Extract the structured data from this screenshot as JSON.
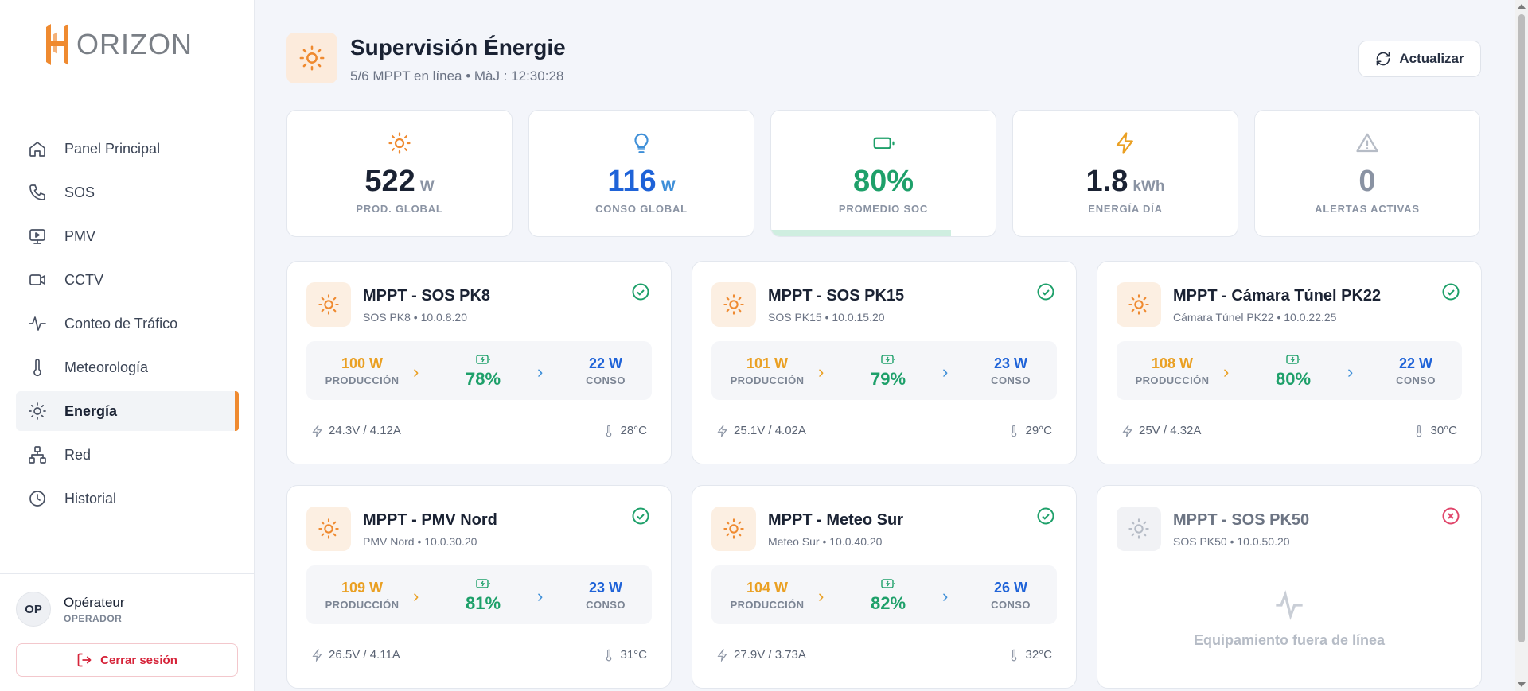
{
  "app": {
    "logo_text": "ORIZON"
  },
  "sidebar": {
    "items": [
      {
        "label": "Panel Principal",
        "icon": "home-icon"
      },
      {
        "label": "SOS",
        "icon": "phone-icon"
      },
      {
        "label": "PMV",
        "icon": "monitor-icon"
      },
      {
        "label": "CCTV",
        "icon": "video-icon"
      },
      {
        "label": "Conteo de Tráfico",
        "icon": "activity-icon"
      },
      {
        "label": "Meteorología",
        "icon": "thermometer-icon"
      },
      {
        "label": "Energía",
        "icon": "sun-icon",
        "active": true
      },
      {
        "label": "Red",
        "icon": "network-icon"
      },
      {
        "label": "Historial",
        "icon": "clock-icon"
      }
    ],
    "user": {
      "initials": "OP",
      "name": "Opérateur",
      "role": "OPERADOR"
    },
    "logout_label": "Cerrar sesión"
  },
  "header": {
    "title": "Supervisión Énergie",
    "subtitle": "5/6 MPPT en línea • MàJ : 12:30:28",
    "refresh_label": "Actualizar"
  },
  "kpis": [
    {
      "value": "522",
      "unit": "W",
      "label": "PROD. GLOBAL",
      "color": "#1a2233",
      "icon_color": "#ef8a30"
    },
    {
      "value": "116",
      "unit": "W",
      "label": "CONSO GLOBAL",
      "color": "#1f63d8",
      "icon_color": "#3e8fd8"
    },
    {
      "value": "80%",
      "unit": "",
      "label": "PROMEDIO SOC",
      "color": "#1ea06a",
      "icon_color": "#1ea06a",
      "fill_fraction": 0.8
    },
    {
      "value": "1.8",
      "unit": "kWh",
      "label": "ENERGÍA DÍA",
      "color": "#1a2233",
      "icon_color": "#eaa023"
    },
    {
      "value": "0",
      "unit": "",
      "label": "ALERTAS ACTIVAS",
      "color": "#8a93a3",
      "icon_color": "#b6bcc6"
    }
  ],
  "labels": {
    "production": "PRODUCCIÓN",
    "consumption": "CONSO",
    "offline": "Equipamiento fuera de línea"
  },
  "cards": [
    {
      "title": "MPPT - SOS PK8",
      "sub": "SOS PK8 • 10.0.8.20",
      "prod": "100 W",
      "soc": "78%",
      "cons": "22 W",
      "volt": "24.3V / 4.12A",
      "temp": "28°C",
      "online": true
    },
    {
      "title": "MPPT - SOS PK15",
      "sub": "SOS PK15 • 10.0.15.20",
      "prod": "101 W",
      "soc": "79%",
      "cons": "23 W",
      "volt": "25.1V / 4.02A",
      "temp": "29°C",
      "online": true
    },
    {
      "title": "MPPT - Cámara Túnel PK22",
      "sub": "Cámara Túnel PK22 • 10.0.22.25",
      "prod": "108 W",
      "soc": "80%",
      "cons": "22 W",
      "volt": "25V / 4.32A",
      "temp": "30°C",
      "online": true
    },
    {
      "title": "MPPT - PMV Nord",
      "sub": "PMV Nord • 10.0.30.20",
      "prod": "109 W",
      "soc": "81%",
      "cons": "23 W",
      "volt": "26.5V / 4.11A",
      "temp": "31°C",
      "online": true
    },
    {
      "title": "MPPT - Meteo Sur",
      "sub": "Meteo Sur • 10.0.40.20",
      "prod": "104 W",
      "soc": "82%",
      "cons": "26 W",
      "volt": "27.9V / 3.73A",
      "temp": "32°C",
      "online": true
    },
    {
      "title": "MPPT - SOS PK50",
      "sub": "SOS PK50 • 10.0.50.20",
      "online": false
    }
  ],
  "colors": {
    "accent": "#ef8a30",
    "online": "#1ea06a",
    "offline": "#e0456a",
    "production": "#eaa023",
    "consumption": "#1f63d8"
  }
}
